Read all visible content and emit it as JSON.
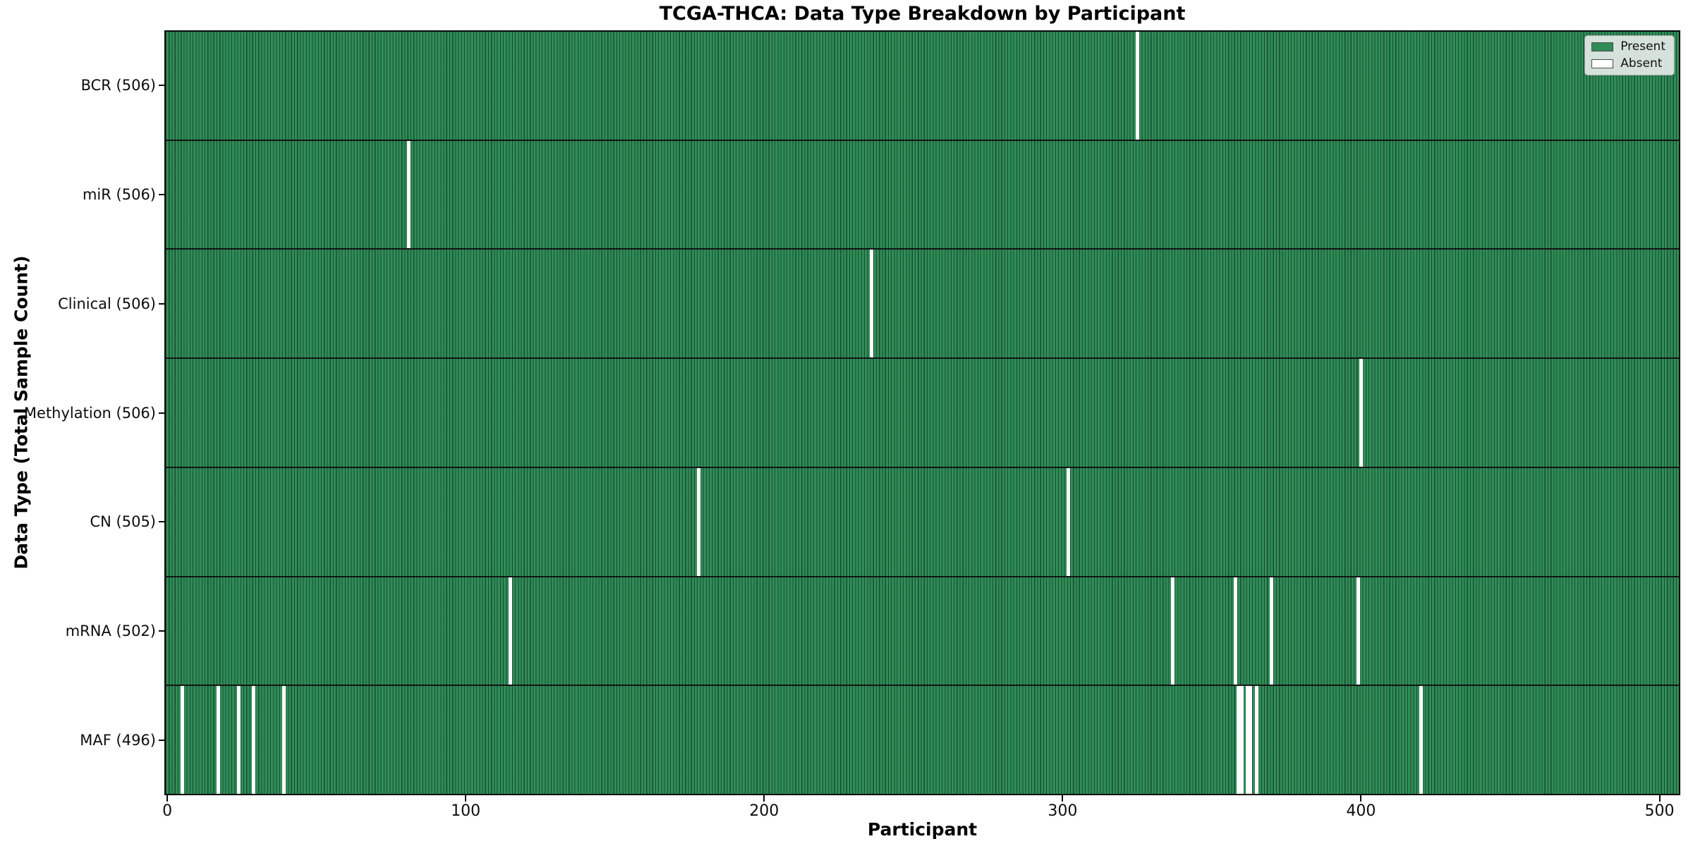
{
  "figure": {
    "title": "TCGA-THCA: Data Type Breakdown by Participant",
    "xlabel": "Participant",
    "ylabel": "Data Type (Total Sample Count)"
  },
  "legend": {
    "items": [
      {
        "label": "Present",
        "color": "#2e8d57"
      },
      {
        "label": "Absent",
        "color": "#ffffff"
      }
    ]
  },
  "colors": {
    "present_fill": "#2e8d57",
    "bar_edge": "#123e27",
    "absent_fill": "#ffffff",
    "row_separator": "#141414",
    "spine": "#0a0a0a"
  },
  "chart_data": {
    "type": "heatmap",
    "title": "TCGA-THCA: Data Type Breakdown by Participant",
    "xlabel": "Participant",
    "ylabel": "Data Type (Total Sample Count)",
    "legend_entries": [
      "Present",
      "Absent"
    ],
    "x_ticks": [
      0,
      100,
      200,
      300,
      400,
      500
    ],
    "x_range": [
      0,
      507
    ],
    "total_participants": 507,
    "rows": [
      {
        "label": "BCR (506)",
        "data_type": "BCR",
        "present_count": 506,
        "absent_count": 1,
        "absent_participant_indices": [
          325
        ]
      },
      {
        "label": "miR (506)",
        "data_type": "miR",
        "present_count": 506,
        "absent_count": 1,
        "absent_participant_indices": [
          81
        ]
      },
      {
        "label": "Clinical (506)",
        "data_type": "Clinical",
        "present_count": 506,
        "absent_count": 1,
        "absent_participant_indices": [
          236
        ]
      },
      {
        "label": "Methylation (506)",
        "data_type": "Methylation",
        "present_count": 506,
        "absent_count": 1,
        "absent_participant_indices": [
          400
        ]
      },
      {
        "label": "CN (505)",
        "data_type": "CN",
        "present_count": 505,
        "absent_count": 2,
        "absent_participant_indices": [
          178,
          302
        ]
      },
      {
        "label": "mRNA (502)",
        "data_type": "mRNA",
        "present_count": 502,
        "absent_count": 5,
        "absent_participant_indices": [
          115,
          337,
          358,
          370,
          399
        ]
      },
      {
        "label": "MAF (496)",
        "data_type": "MAF",
        "present_count": 496,
        "absent_count": 11,
        "absent_participant_indices": [
          5,
          17,
          24,
          29,
          39,
          359,
          360,
          362,
          363,
          365,
          420
        ]
      }
    ]
  }
}
